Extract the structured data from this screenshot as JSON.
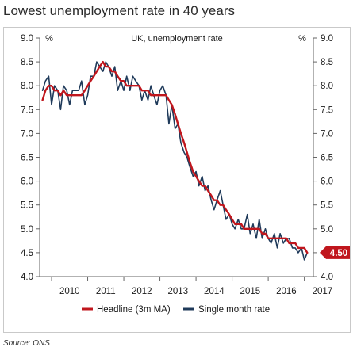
{
  "title": "Lowest unemployment rate in 40 years",
  "source": "Source: ONS",
  "chart_data": {
    "type": "line",
    "title": "UK, unemployment rate",
    "left_unit": "%",
    "right_unit": "%",
    "ylim": [
      4.0,
      9.0
    ],
    "yticks": [
      "9.0",
      "8.5",
      "8.0",
      "7.5",
      "7.0",
      "6.5",
      "6.0",
      "5.5",
      "5.0",
      "4.5",
      "4.0"
    ],
    "x_tick_labels": [
      "2010",
      "2011",
      "2012",
      "2013",
      "2014",
      "2015",
      "2016",
      "2017"
    ],
    "x_range": [
      2009.67,
      2017.25
    ],
    "grid": false,
    "legend_position": "bottom",
    "end_label": "4.50",
    "series": [
      {
        "name": "Headline (3m MA)",
        "color": "#c0161d",
        "x": [
          2009.75,
          2009.83,
          2009.92,
          2010.0,
          2010.08,
          2010.17,
          2010.25,
          2010.33,
          2010.42,
          2010.5,
          2010.58,
          2010.67,
          2010.75,
          2010.83,
          2010.92,
          2011.0,
          2011.08,
          2011.17,
          2011.25,
          2011.33,
          2011.42,
          2011.5,
          2011.58,
          2011.67,
          2011.75,
          2011.83,
          2011.92,
          2012.0,
          2012.08,
          2012.17,
          2012.25,
          2012.33,
          2012.42,
          2012.5,
          2012.58,
          2012.67,
          2012.75,
          2012.83,
          2012.92,
          2013.0,
          2013.08,
          2013.17,
          2013.25,
          2013.33,
          2013.42,
          2013.5,
          2013.58,
          2013.67,
          2013.75,
          2013.83,
          2013.92,
          2014.0,
          2014.08,
          2014.17,
          2014.25,
          2014.33,
          2014.42,
          2014.5,
          2014.58,
          2014.67,
          2014.75,
          2014.83,
          2014.92,
          2015.0,
          2015.08,
          2015.17,
          2015.25,
          2015.33,
          2015.42,
          2015.5,
          2015.58,
          2015.67,
          2015.75,
          2015.83,
          2015.92,
          2016.0,
          2016.08,
          2016.17,
          2016.25,
          2016.33,
          2016.42,
          2016.5,
          2016.58,
          2016.67,
          2016.75,
          2016.83,
          2016.92,
          2017.0,
          2017.08
        ],
        "values": [
          7.7,
          7.9,
          8.0,
          8.0,
          7.9,
          7.9,
          7.8,
          7.9,
          7.8,
          7.8,
          7.8,
          7.8,
          7.8,
          7.8,
          7.9,
          8.0,
          8.1,
          8.2,
          8.3,
          8.4,
          8.5,
          8.4,
          8.4,
          8.3,
          8.3,
          8.2,
          8.1,
          8.1,
          8.0,
          8.0,
          8.0,
          8.0,
          8.0,
          7.9,
          7.9,
          7.9,
          7.8,
          7.8,
          7.8,
          7.8,
          7.8,
          7.8,
          7.7,
          7.6,
          7.4,
          7.2,
          7.0,
          6.8,
          6.6,
          6.4,
          6.2,
          6.1,
          6.0,
          5.9,
          5.9,
          5.8,
          5.7,
          5.6,
          5.6,
          5.5,
          5.5,
          5.4,
          5.3,
          5.2,
          5.1,
          5.1,
          5.1,
          5.0,
          5.0,
          5.0,
          5.0,
          5.0,
          5.0,
          4.9,
          4.9,
          4.8,
          4.8,
          4.8,
          4.8,
          4.8,
          4.8,
          4.8,
          4.7,
          4.7,
          4.7,
          4.6,
          4.6,
          4.6,
          4.5
        ]
      },
      {
        "name": "Single month rate",
        "color": "#1f3a5a",
        "x": [
          2009.75,
          2009.83,
          2009.92,
          2010.0,
          2010.08,
          2010.17,
          2010.25,
          2010.33,
          2010.42,
          2010.5,
          2010.58,
          2010.67,
          2010.75,
          2010.83,
          2010.92,
          2011.0,
          2011.08,
          2011.17,
          2011.25,
          2011.33,
          2011.42,
          2011.5,
          2011.58,
          2011.67,
          2011.75,
          2011.83,
          2011.92,
          2012.0,
          2012.08,
          2012.17,
          2012.25,
          2012.33,
          2012.42,
          2012.5,
          2012.58,
          2012.67,
          2012.75,
          2012.83,
          2012.92,
          2013.0,
          2013.08,
          2013.17,
          2013.25,
          2013.33,
          2013.42,
          2013.5,
          2013.58,
          2013.67,
          2013.75,
          2013.83,
          2013.92,
          2014.0,
          2014.08,
          2014.17,
          2014.25,
          2014.33,
          2014.42,
          2014.5,
          2014.58,
          2014.67,
          2014.75,
          2014.83,
          2014.92,
          2015.0,
          2015.08,
          2015.17,
          2015.25,
          2015.33,
          2015.42,
          2015.5,
          2015.58,
          2015.67,
          2015.75,
          2015.83,
          2015.92,
          2016.0,
          2016.08,
          2016.17,
          2016.25,
          2016.33,
          2016.42,
          2016.5,
          2016.58,
          2016.67,
          2016.75,
          2016.83,
          2016.92,
          2017.0,
          2017.08
        ],
        "values": [
          7.9,
          8.1,
          8.2,
          7.6,
          8.0,
          7.9,
          7.5,
          8.0,
          7.9,
          7.6,
          7.9,
          7.9,
          7.9,
          8.1,
          7.6,
          7.8,
          8.2,
          8.2,
          8.5,
          8.4,
          8.3,
          8.5,
          8.4,
          8.2,
          8.4,
          7.9,
          8.1,
          7.9,
          8.2,
          7.9,
          8.2,
          8.1,
          8.0,
          7.7,
          7.9,
          7.7,
          8.0,
          7.8,
          7.6,
          7.9,
          8.0,
          7.8,
          7.2,
          7.6,
          7.1,
          7.2,
          6.8,
          6.6,
          6.5,
          6.3,
          6.1,
          6.2,
          5.9,
          6.1,
          5.8,
          5.9,
          5.6,
          5.4,
          5.6,
          5.8,
          5.5,
          5.2,
          5.3,
          5.1,
          5.0,
          5.2,
          5.0,
          5.0,
          5.3,
          4.9,
          5.1,
          4.8,
          5.2,
          4.8,
          5.0,
          4.8,
          4.7,
          4.9,
          4.6,
          4.9,
          4.7,
          4.8,
          4.8,
          4.6,
          4.6,
          4.5,
          4.6,
          4.35,
          4.5
        ]
      }
    ]
  }
}
